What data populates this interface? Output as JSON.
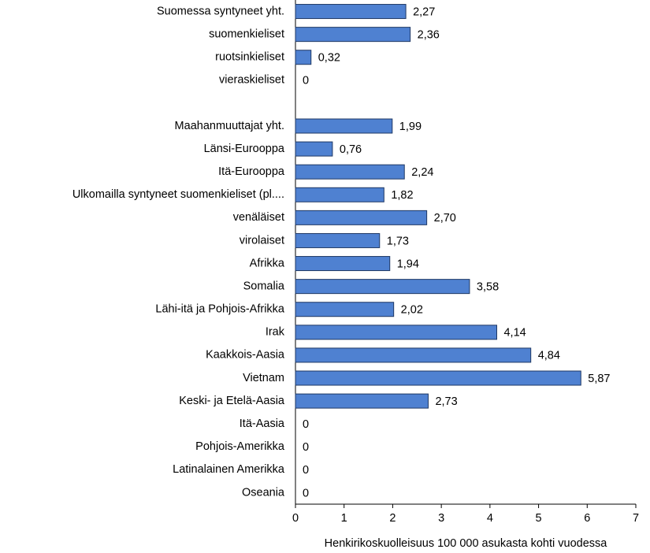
{
  "chart_data": {
    "type": "barh",
    "x_label": "Henkirikoskuolleisuus  100 000 asukasta kohti vuodessa",
    "categories": [
      "Suomessa syntyneet yht.",
      "suomenkieliset",
      "ruotsinkieliset",
      "vieraskieliset",
      null,
      "Maahanmuuttajat yht.",
      "Länsi-Eurooppa",
      "Itä-Eurooppa",
      "Ulkomailla syntyneet suomenkieliset (pl....",
      "venäläiset",
      "virolaiset",
      "Afrikka",
      "Somalia",
      "Lähi-itä ja Pohjois-Afrikka",
      "Irak",
      "Kaakkois-Aasia",
      "Vietnam",
      "Keski- ja Etelä-Aasia",
      "Itä-Aasia",
      "Pohjois-Amerikka",
      "Latinalainen Amerikka",
      "Oseania"
    ],
    "values": [
      2.27,
      2.36,
      0.32,
      0,
      null,
      1.99,
      0.76,
      2.24,
      1.82,
      2.7,
      1.73,
      1.94,
      3.58,
      2.02,
      4.14,
      4.84,
      5.87,
      2.73,
      0,
      0,
      0,
      0
    ],
    "value_labels": [
      "2,27",
      "2,36",
      "0,32",
      "0",
      null,
      "1,99",
      "0,76",
      "2,24",
      "1,82",
      "2,70",
      "1,73",
      "1,94",
      "3,58",
      "2,02",
      "4,14",
      "4,84",
      "5,87",
      "2,73",
      "0",
      "0",
      "0",
      "0"
    ],
    "color": "#4f81d1",
    "xlim": [
      0,
      7
    ],
    "xticks": [
      0,
      1,
      2,
      3,
      4,
      5,
      6,
      7
    ],
    "grid": false
  }
}
